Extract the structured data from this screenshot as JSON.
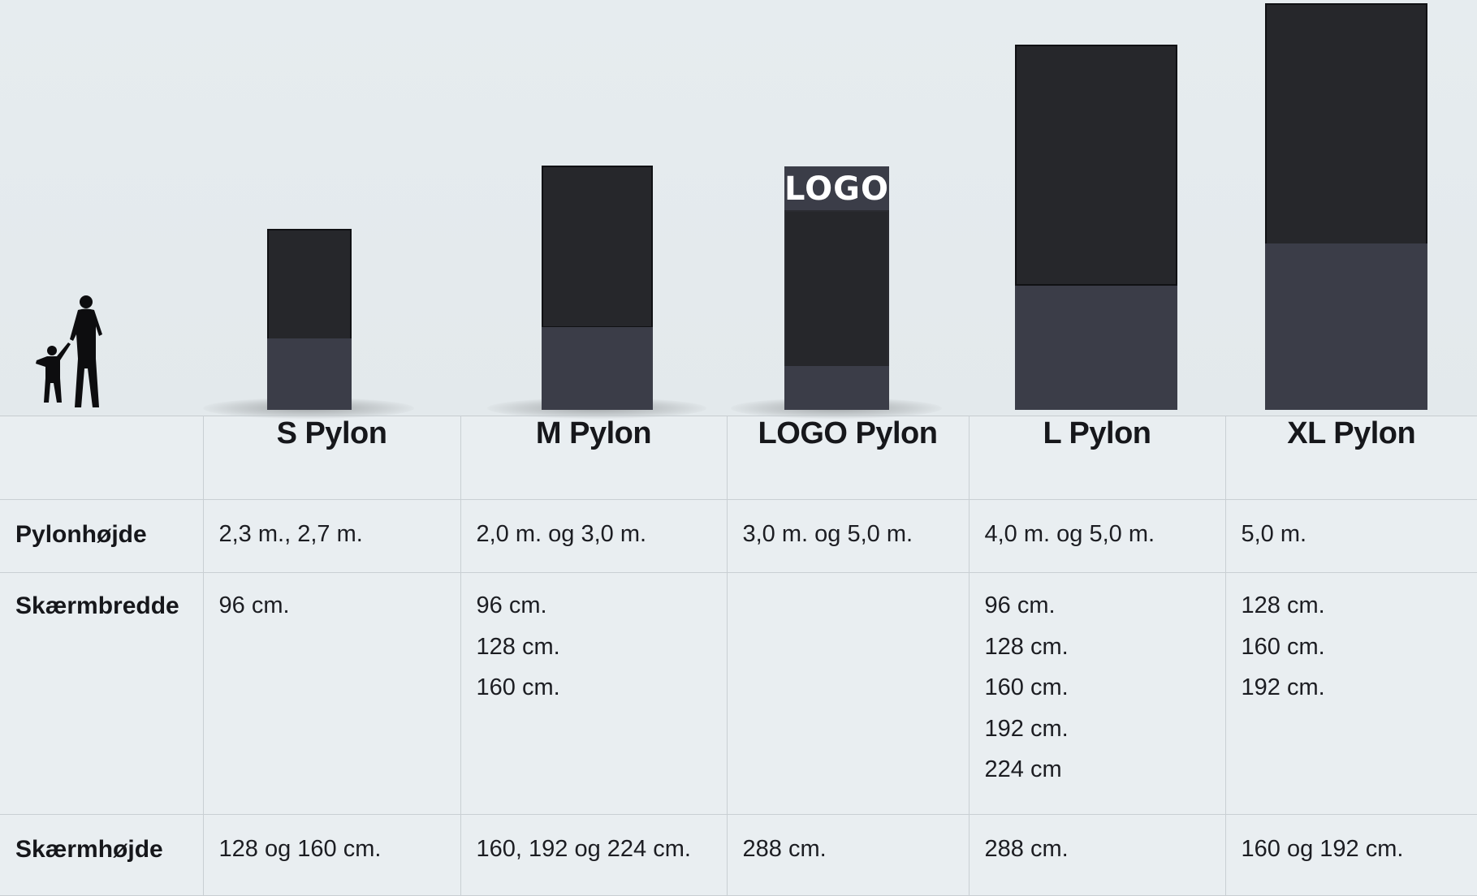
{
  "products": [
    {
      "name": "S Pylon",
      "pylon_height": "2,3 m., 2,7 m.",
      "screen_widths": [
        "96 cm."
      ],
      "screen_height": "128 og 160 cm."
    },
    {
      "name": "M Pylon",
      "pylon_height": "2,0 m. og 3,0 m.",
      "screen_widths": [
        "96 cm.",
        "128 cm.",
        "160 cm."
      ],
      "screen_height": "160, 192 og 224 cm."
    },
    {
      "name": "LOGO Pylon",
      "pylon_height": "3,0 m. og 5,0 m.",
      "screen_widths": [],
      "screen_height": "288 cm.",
      "logo_text": "LOGO"
    },
    {
      "name": "L Pylon",
      "pylon_height": "4,0 m. og 5,0 m.",
      "screen_widths": [
        "96 cm.",
        "128 cm.",
        "160 cm.",
        "192 cm.",
        "224 cm"
      ],
      "screen_height": "288 cm."
    },
    {
      "name": "XL Pylon",
      "pylon_height": "5,0 m.",
      "screen_widths": [
        "128 cm.",
        "160 cm.",
        "192 cm."
      ],
      "screen_height": "160 og 192 cm."
    }
  ],
  "row_labels": {
    "pylon_height": "Pylonhøjde",
    "screen_width": "Skærmbredde",
    "screen_height": "Skærmhøjde"
  },
  "colors": {
    "background": "#e9eef1",
    "screen": "#26272b",
    "base": "#3b3d48",
    "grid": "#c9cfd3"
  }
}
